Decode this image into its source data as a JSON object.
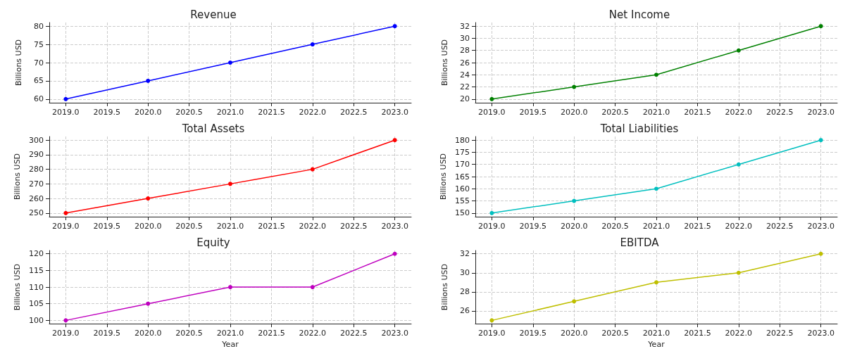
{
  "chart_data": [
    {
      "type": "line",
      "title": "Revenue",
      "ylabel": "Billions USD",
      "x": [
        2019,
        2020,
        2021,
        2022,
        2023
      ],
      "series": [
        {
          "color": "#0000ff",
          "values": [
            60,
            65,
            70,
            75,
            80
          ]
        }
      ],
      "xlim": [
        2018.8,
        2023.2
      ],
      "xticks": [
        {
          "value": 2019,
          "label": "2019.0"
        },
        {
          "value": 2019.5,
          "label": "2019.5"
        },
        {
          "value": 2020,
          "label": "2020.0"
        },
        {
          "value": 2020.5,
          "label": "2020.5"
        },
        {
          "value": 2021,
          "label": "2021.0"
        },
        {
          "value": 2021.5,
          "label": "2021.5"
        },
        {
          "value": 2022,
          "label": "2022.0"
        },
        {
          "value": 2022.5,
          "label": "2022.5"
        },
        {
          "value": 2023,
          "label": "2023.0"
        }
      ],
      "ylim": [
        59,
        81
      ],
      "yticks": [
        60,
        65,
        70,
        75,
        80
      ],
      "grid": true,
      "marker": "circle",
      "line_style": "solid"
    },
    {
      "type": "line",
      "title": "Net Income",
      "ylabel": "Billions USD",
      "x": [
        2019,
        2020,
        2021,
        2022,
        2023
      ],
      "series": [
        {
          "color": "#008000",
          "values": [
            20,
            22,
            24,
            28,
            32
          ]
        }
      ],
      "xlim": [
        2018.8,
        2023.2
      ],
      "xticks": [
        {
          "value": 2019,
          "label": "2019.0"
        },
        {
          "value": 2019.5,
          "label": "2019.5"
        },
        {
          "value": 2020,
          "label": "2020.0"
        },
        {
          "value": 2020.5,
          "label": "2020.5"
        },
        {
          "value": 2021,
          "label": "2021.0"
        },
        {
          "value": 2021.5,
          "label": "2021.5"
        },
        {
          "value": 2022,
          "label": "2022.0"
        },
        {
          "value": 2022.5,
          "label": "2022.5"
        },
        {
          "value": 2023,
          "label": "2023.0"
        }
      ],
      "ylim": [
        19.4,
        32.6
      ],
      "yticks": [
        20,
        22,
        24,
        26,
        28,
        30,
        32
      ],
      "grid": true,
      "marker": "circle",
      "line_style": "solid"
    },
    {
      "type": "line",
      "title": "Total Assets",
      "ylabel": "Billions USD",
      "x": [
        2019,
        2020,
        2021,
        2022,
        2023
      ],
      "series": [
        {
          "color": "#ff0000",
          "values": [
            250,
            260,
            270,
            280,
            300
          ]
        }
      ],
      "xlim": [
        2018.8,
        2023.2
      ],
      "xticks": [
        {
          "value": 2019,
          "label": "2019.0"
        },
        {
          "value": 2019.5,
          "label": "2019.5"
        },
        {
          "value": 2020,
          "label": "2020.0"
        },
        {
          "value": 2020.5,
          "label": "2020.5"
        },
        {
          "value": 2021,
          "label": "2021.0"
        },
        {
          "value": 2021.5,
          "label": "2021.5"
        },
        {
          "value": 2022,
          "label": "2022.0"
        },
        {
          "value": 2022.5,
          "label": "2022.5"
        },
        {
          "value": 2023,
          "label": "2023.0"
        }
      ],
      "ylim": [
        247.5,
        302.5
      ],
      "yticks": [
        250,
        260,
        270,
        280,
        290,
        300
      ],
      "grid": true,
      "marker": "circle",
      "line_style": "solid"
    },
    {
      "type": "line",
      "title": "Total Liabilities",
      "ylabel": "Billions USD",
      "x": [
        2019,
        2020,
        2021,
        2022,
        2023
      ],
      "series": [
        {
          "color": "#00bfbf",
          "values": [
            150,
            155,
            160,
            170,
            180
          ]
        }
      ],
      "xlim": [
        2018.8,
        2023.2
      ],
      "xticks": [
        {
          "value": 2019,
          "label": "2019.0"
        },
        {
          "value": 2019.5,
          "label": "2019.5"
        },
        {
          "value": 2020,
          "label": "2020.0"
        },
        {
          "value": 2020.5,
          "label": "2020.5"
        },
        {
          "value": 2021,
          "label": "2021.0"
        },
        {
          "value": 2021.5,
          "label": "2021.5"
        },
        {
          "value": 2022,
          "label": "2022.0"
        },
        {
          "value": 2022.5,
          "label": "2022.5"
        },
        {
          "value": 2023,
          "label": "2023.0"
        }
      ],
      "ylim": [
        148.5,
        181.5
      ],
      "yticks": [
        150,
        155,
        160,
        165,
        170,
        175,
        180
      ],
      "grid": true,
      "marker": "circle",
      "line_style": "solid"
    },
    {
      "type": "line",
      "title": "Equity",
      "ylabel": "Billions USD",
      "xlabel": "Year",
      "x": [
        2019,
        2020,
        2021,
        2022,
        2023
      ],
      "series": [
        {
          "color": "#bf00bf",
          "values": [
            100,
            105,
            110,
            110,
            120
          ]
        }
      ],
      "xlim": [
        2018.8,
        2023.2
      ],
      "xticks": [
        {
          "value": 2019,
          "label": "2019.0"
        },
        {
          "value": 2019.5,
          "label": "2019.5"
        },
        {
          "value": 2020,
          "label": "2020.0"
        },
        {
          "value": 2020.5,
          "label": "2020.5"
        },
        {
          "value": 2021,
          "label": "2021.0"
        },
        {
          "value": 2021.5,
          "label": "2021.5"
        },
        {
          "value": 2022,
          "label": "2022.0"
        },
        {
          "value": 2022.5,
          "label": "2022.5"
        },
        {
          "value": 2023,
          "label": "2023.0"
        }
      ],
      "ylim": [
        99,
        121
      ],
      "yticks": [
        100,
        105,
        110,
        115,
        120
      ],
      "grid": true,
      "marker": "circle",
      "line_style": "solid"
    },
    {
      "type": "line",
      "title": "EBITDA",
      "ylabel": "Billions USD",
      "xlabel": "Year",
      "x": [
        2019,
        2020,
        2021,
        2022,
        2023
      ],
      "series": [
        {
          "color": "#bfbf00",
          "values": [
            25,
            27,
            29,
            30,
            32
          ]
        }
      ],
      "xlim": [
        2018.8,
        2023.2
      ],
      "xticks": [
        {
          "value": 2019,
          "label": "2019.0"
        },
        {
          "value": 2019.5,
          "label": "2019.5"
        },
        {
          "value": 2020,
          "label": "2020.0"
        },
        {
          "value": 2020.5,
          "label": "2020.5"
        },
        {
          "value": 2021,
          "label": "2021.0"
        },
        {
          "value": 2021.5,
          "label": "2021.5"
        },
        {
          "value": 2022,
          "label": "2022.0"
        },
        {
          "value": 2022.5,
          "label": "2022.5"
        },
        {
          "value": 2023,
          "label": "2023.0"
        }
      ],
      "ylim": [
        24.65,
        32.35
      ],
      "yticks": [
        26,
        28,
        30,
        32
      ],
      "grid": true,
      "marker": "circle",
      "line_style": "solid"
    }
  ]
}
